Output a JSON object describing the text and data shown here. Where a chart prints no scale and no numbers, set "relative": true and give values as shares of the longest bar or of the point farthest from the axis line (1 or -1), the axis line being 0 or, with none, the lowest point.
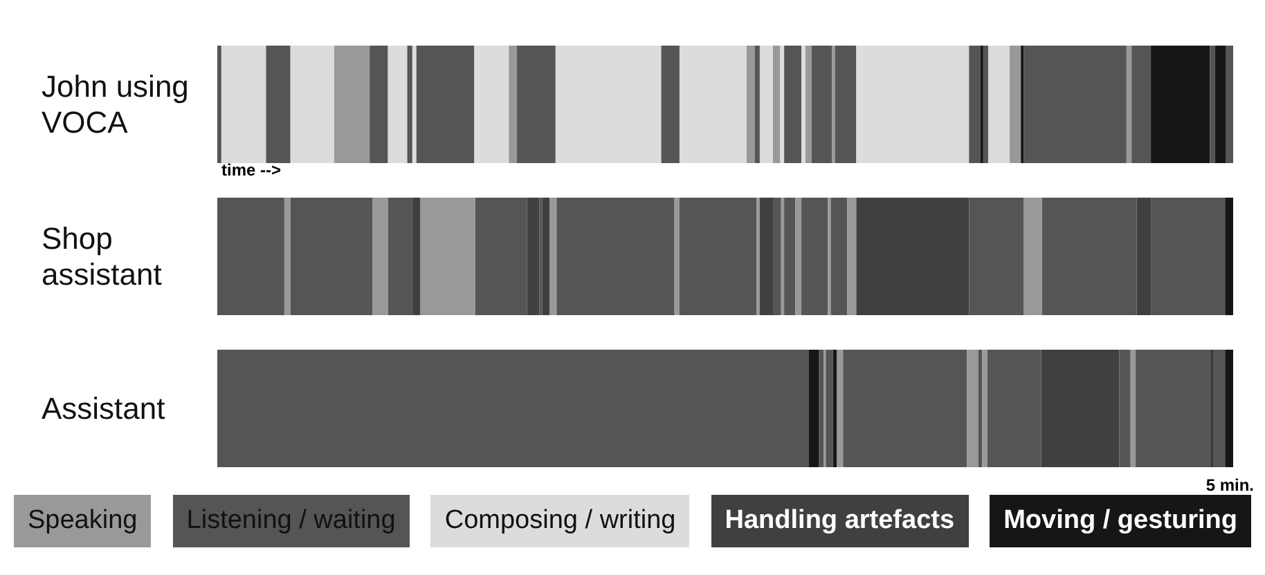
{
  "chart_data": {
    "type": "bar",
    "orientation": "horizontal",
    "stacked": true,
    "relative": true,
    "legend": "bottom",
    "categories": [
      "John using VOCA",
      "Shop assistant",
      "Assistant"
    ],
    "annotations": [
      "time -->",
      "5 min."
    ],
    "series": [
      {
        "name": "Speaking",
        "color": "#999999",
        "values": [
          null,
          null,
          null
        ]
      },
      {
        "name": "Listening / waiting",
        "color": "#555555",
        "values": [
          null,
          null,
          null
        ]
      },
      {
        "name": "Composing / writing",
        "color": "#dcdcdc",
        "values": [
          null,
          null,
          null
        ]
      },
      {
        "name": "Handling artefacts",
        "color": "#404040",
        "values": [
          null,
          null,
          null
        ]
      },
      {
        "name": "Moving / gesturing",
        "color": "#161616",
        "values": [
          null,
          null,
          null
        ]
      },
      {
        "color": "#555555",
        "values": [
          0.004,
          0.066,
          0.582
        ]
      },
      {
        "color": "#dcdcdc",
        "values": [
          0.044,
          null,
          null
        ]
      },
      {
        "color": "#555555",
        "values": [
          0.024,
          null,
          null
        ]
      },
      {
        "color": "#dcdcdc",
        "values": [
          0.043,
          null,
          null
        ]
      },
      {
        "color": "#999999",
        "values": [
          0.035,
          null,
          null
        ]
      },
      {
        "color": "#555555",
        "values": [
          0.018,
          null,
          null
        ]
      },
      {
        "color": "#dcdcdc",
        "values": [
          0.019,
          null,
          null
        ]
      },
      {
        "color": "#555555",
        "values": [
          0.005,
          null,
          null
        ]
      },
      {
        "color": "#dcdcdc",
        "values": [
          0.004,
          null,
          null
        ]
      },
      {
        "color": "#555555",
        "values": [
          0.057,
          null,
          null
        ]
      },
      {
        "color": "#dcdcdc",
        "values": [
          0.034,
          null,
          null
        ]
      },
      {
        "color": "#999999",
        "values": [
          0.008,
          null,
          null
        ]
      },
      {
        "color": "#555555",
        "values": [
          0.038,
          null,
          null
        ]
      },
      {
        "color": "#dcdcdc",
        "values": [
          0.104,
          null,
          null
        ]
      },
      {
        "color": "#555555",
        "values": [
          0.018,
          null,
          null
        ]
      },
      {
        "color": "#dcdcdc",
        "values": [
          0.066,
          null,
          null
        ]
      },
      {
        "color": "#999999",
        "values": [
          0.008,
          null,
          null
        ]
      },
      {
        "color": "#555555",
        "values": [
          0.005,
          null,
          null
        ]
      },
      {
        "color": "#dcdcdc",
        "values": [
          0.013,
          null,
          null
        ]
      },
      {
        "color": "#999999",
        "values": [
          0.007,
          null,
          null
        ]
      },
      {
        "color": "#dcdcdc",
        "values": [
          0.004,
          null,
          null
        ]
      },
      {
        "color": "#555555",
        "values": [
          0.017,
          null,
          null
        ]
      },
      {
        "color": "#dcdcdc",
        "values": [
          0.004,
          null,
          null
        ]
      },
      {
        "color": "#999999",
        "values": [
          0.006,
          null,
          null
        ]
      },
      {
        "color": "#555555",
        "values": [
          0.02,
          null,
          null
        ]
      },
      {
        "color": "#999999",
        "values": [
          0.003,
          null,
          null
        ]
      },
      {
        "color": "#555555",
        "values": [
          0.021,
          null,
          null
        ]
      },
      {
        "color": "#dcdcdc",
        "values": [
          0.111,
          null,
          null
        ]
      },
      {
        "color": "#555555",
        "values": [
          0.011,
          null,
          null
        ]
      },
      {
        "color": "#161616",
        "values": [
          0.003,
          null,
          null
        ]
      },
      {
        "color": "#555555",
        "values": [
          0.005,
          null,
          null
        ]
      },
      {
        "color": "#dcdcdc",
        "values": [
          0.021,
          null,
          null
        ]
      },
      {
        "color": "#999999",
        "values": [
          0.011,
          null,
          null
        ]
      },
      {
        "color": "#161616",
        "values": [
          0.003,
          null,
          null
        ]
      },
      {
        "color": "#555555",
        "values": [
          0.101,
          null,
          null
        ]
      },
      {
        "color": "#999999",
        "values": [
          0.005,
          null,
          null
        ]
      },
      {
        "color": "#555555",
        "values": [
          0.019,
          null,
          null
        ]
      },
      {
        "color": "#161616",
        "values": [
          0.058,
          null,
          null
        ]
      },
      {
        "color": "#555555",
        "values": [
          0.005,
          null,
          null
        ]
      },
      {
        "color": "#161616",
        "values": [
          0.011,
          null,
          null
        ]
      },
      {
        "color": "#555555",
        "values": [
          0.007,
          null,
          null
        ]
      },
      {
        "color": "#999999",
        "values": [
          null,
          0.006,
          null
        ]
      },
      {
        "color": "#555555",
        "values": [
          null,
          0.081,
          null
        ]
      },
      {
        "color": "#999999",
        "values": [
          null,
          0.015,
          null
        ]
      },
      {
        "color": "#555555",
        "values": [
          null,
          0.024,
          null
        ]
      },
      {
        "color": "#404040",
        "values": [
          null,
          0.008,
          null
        ]
      },
      {
        "color": "#999999",
        "values": [
          null,
          0.054,
          null
        ]
      },
      {
        "color": "#555555",
        "values": [
          null,
          0.051,
          null
        ]
      },
      {
        "color": "#404040",
        "values": [
          null,
          0.012,
          null
        ]
      },
      {
        "color": "#555555",
        "values": [
          null,
          0.003,
          null
        ]
      },
      {
        "color": "#404040",
        "values": [
          null,
          0.007,
          null
        ]
      },
      {
        "color": "#999999",
        "values": [
          null,
          0.007,
          null
        ]
      },
      {
        "color": "#555555",
        "values": [
          null,
          0.116,
          null
        ]
      },
      {
        "color": "#999999",
        "values": [
          null,
          0.005,
          null
        ]
      },
      {
        "color": "#555555",
        "values": [
          null,
          0.076,
          null
        ]
      },
      {
        "color": "#999999",
        "values": [
          null,
          0.003,
          null
        ]
      },
      {
        "color": "#404040",
        "values": [
          null,
          0.013,
          null
        ]
      },
      {
        "color": "#555555",
        "values": [
          null,
          0.008,
          null
        ]
      },
      {
        "color": "#999999",
        "values": [
          null,
          0.003,
          null
        ]
      },
      {
        "color": "#555555",
        "values": [
          null,
          0.011,
          null
        ]
      },
      {
        "color": "#999999",
        "values": [
          null,
          0.006,
          null
        ]
      },
      {
        "color": "#555555",
        "values": [
          null,
          0.026,
          null
        ]
      },
      {
        "color": "#999999",
        "values": [
          null,
          0.003,
          null
        ]
      },
      {
        "color": "#555555",
        "values": [
          null,
          0.016,
          null
        ]
      },
      {
        "color": "#999999",
        "values": [
          null,
          0.009,
          null
        ]
      },
      {
        "color": "#404040",
        "values": [
          null,
          0.111,
          null
        ]
      },
      {
        "color": "#555555",
        "values": [
          null,
          0.054,
          null
        ]
      },
      {
        "color": "#999999",
        "values": [
          null,
          0.018,
          null
        ]
      },
      {
        "color": "#555555",
        "values": [
          null,
          0.093,
          null
        ]
      },
      {
        "color": "#404040",
        "values": [
          null,
          0.014,
          null
        ]
      },
      {
        "color": "#555555",
        "values": [
          null,
          0.073,
          null
        ]
      },
      {
        "color": "#161616",
        "values": [
          null,
          0.008,
          null
        ]
      },
      {
        "color": "#161616",
        "values": [
          null,
          null,
          0.01
        ]
      },
      {
        "color": "#555555",
        "values": [
          null,
          null,
          0.005
        ]
      },
      {
        "color": "#999999",
        "values": [
          null,
          null,
          0.002
        ]
      },
      {
        "color": "#555555",
        "values": [
          null,
          null,
          0.007
        ]
      },
      {
        "color": "#161616",
        "values": [
          null,
          null,
          0.004
        ]
      },
      {
        "color": "#999999",
        "values": [
          null,
          null,
          0.006
        ]
      },
      {
        "color": "#555555",
        "values": [
          null,
          null,
          0.122
        ]
      },
      {
        "color": "#999999",
        "values": [
          null,
          null,
          0.011
        ]
      },
      {
        "color": "#555555",
        "values": [
          null,
          null,
          0.004
        ]
      },
      {
        "color": "#999999",
        "values": [
          null,
          null,
          0.005
        ]
      },
      {
        "color": "#555555",
        "values": [
          null,
          null,
          0.053
        ]
      },
      {
        "color": "#404040",
        "values": [
          null,
          null,
          0.077
        ]
      },
      {
        "color": "#555555",
        "values": [
          null,
          null,
          0.011
        ]
      },
      {
        "color": "#999999",
        "values": [
          null,
          null,
          0.005
        ]
      },
      {
        "color": "#555555",
        "values": [
          null,
          null,
          0.073
        ]
      },
      {
        "color": "#404040",
        "values": [
          null,
          null,
          0.004
        ]
      },
      {
        "color": "#555555",
        "values": [
          null,
          null,
          0.011
        ]
      },
      {
        "color": "#161616",
        "values": [
          null,
          null,
          0.008
        ]
      }
    ]
  }
}
